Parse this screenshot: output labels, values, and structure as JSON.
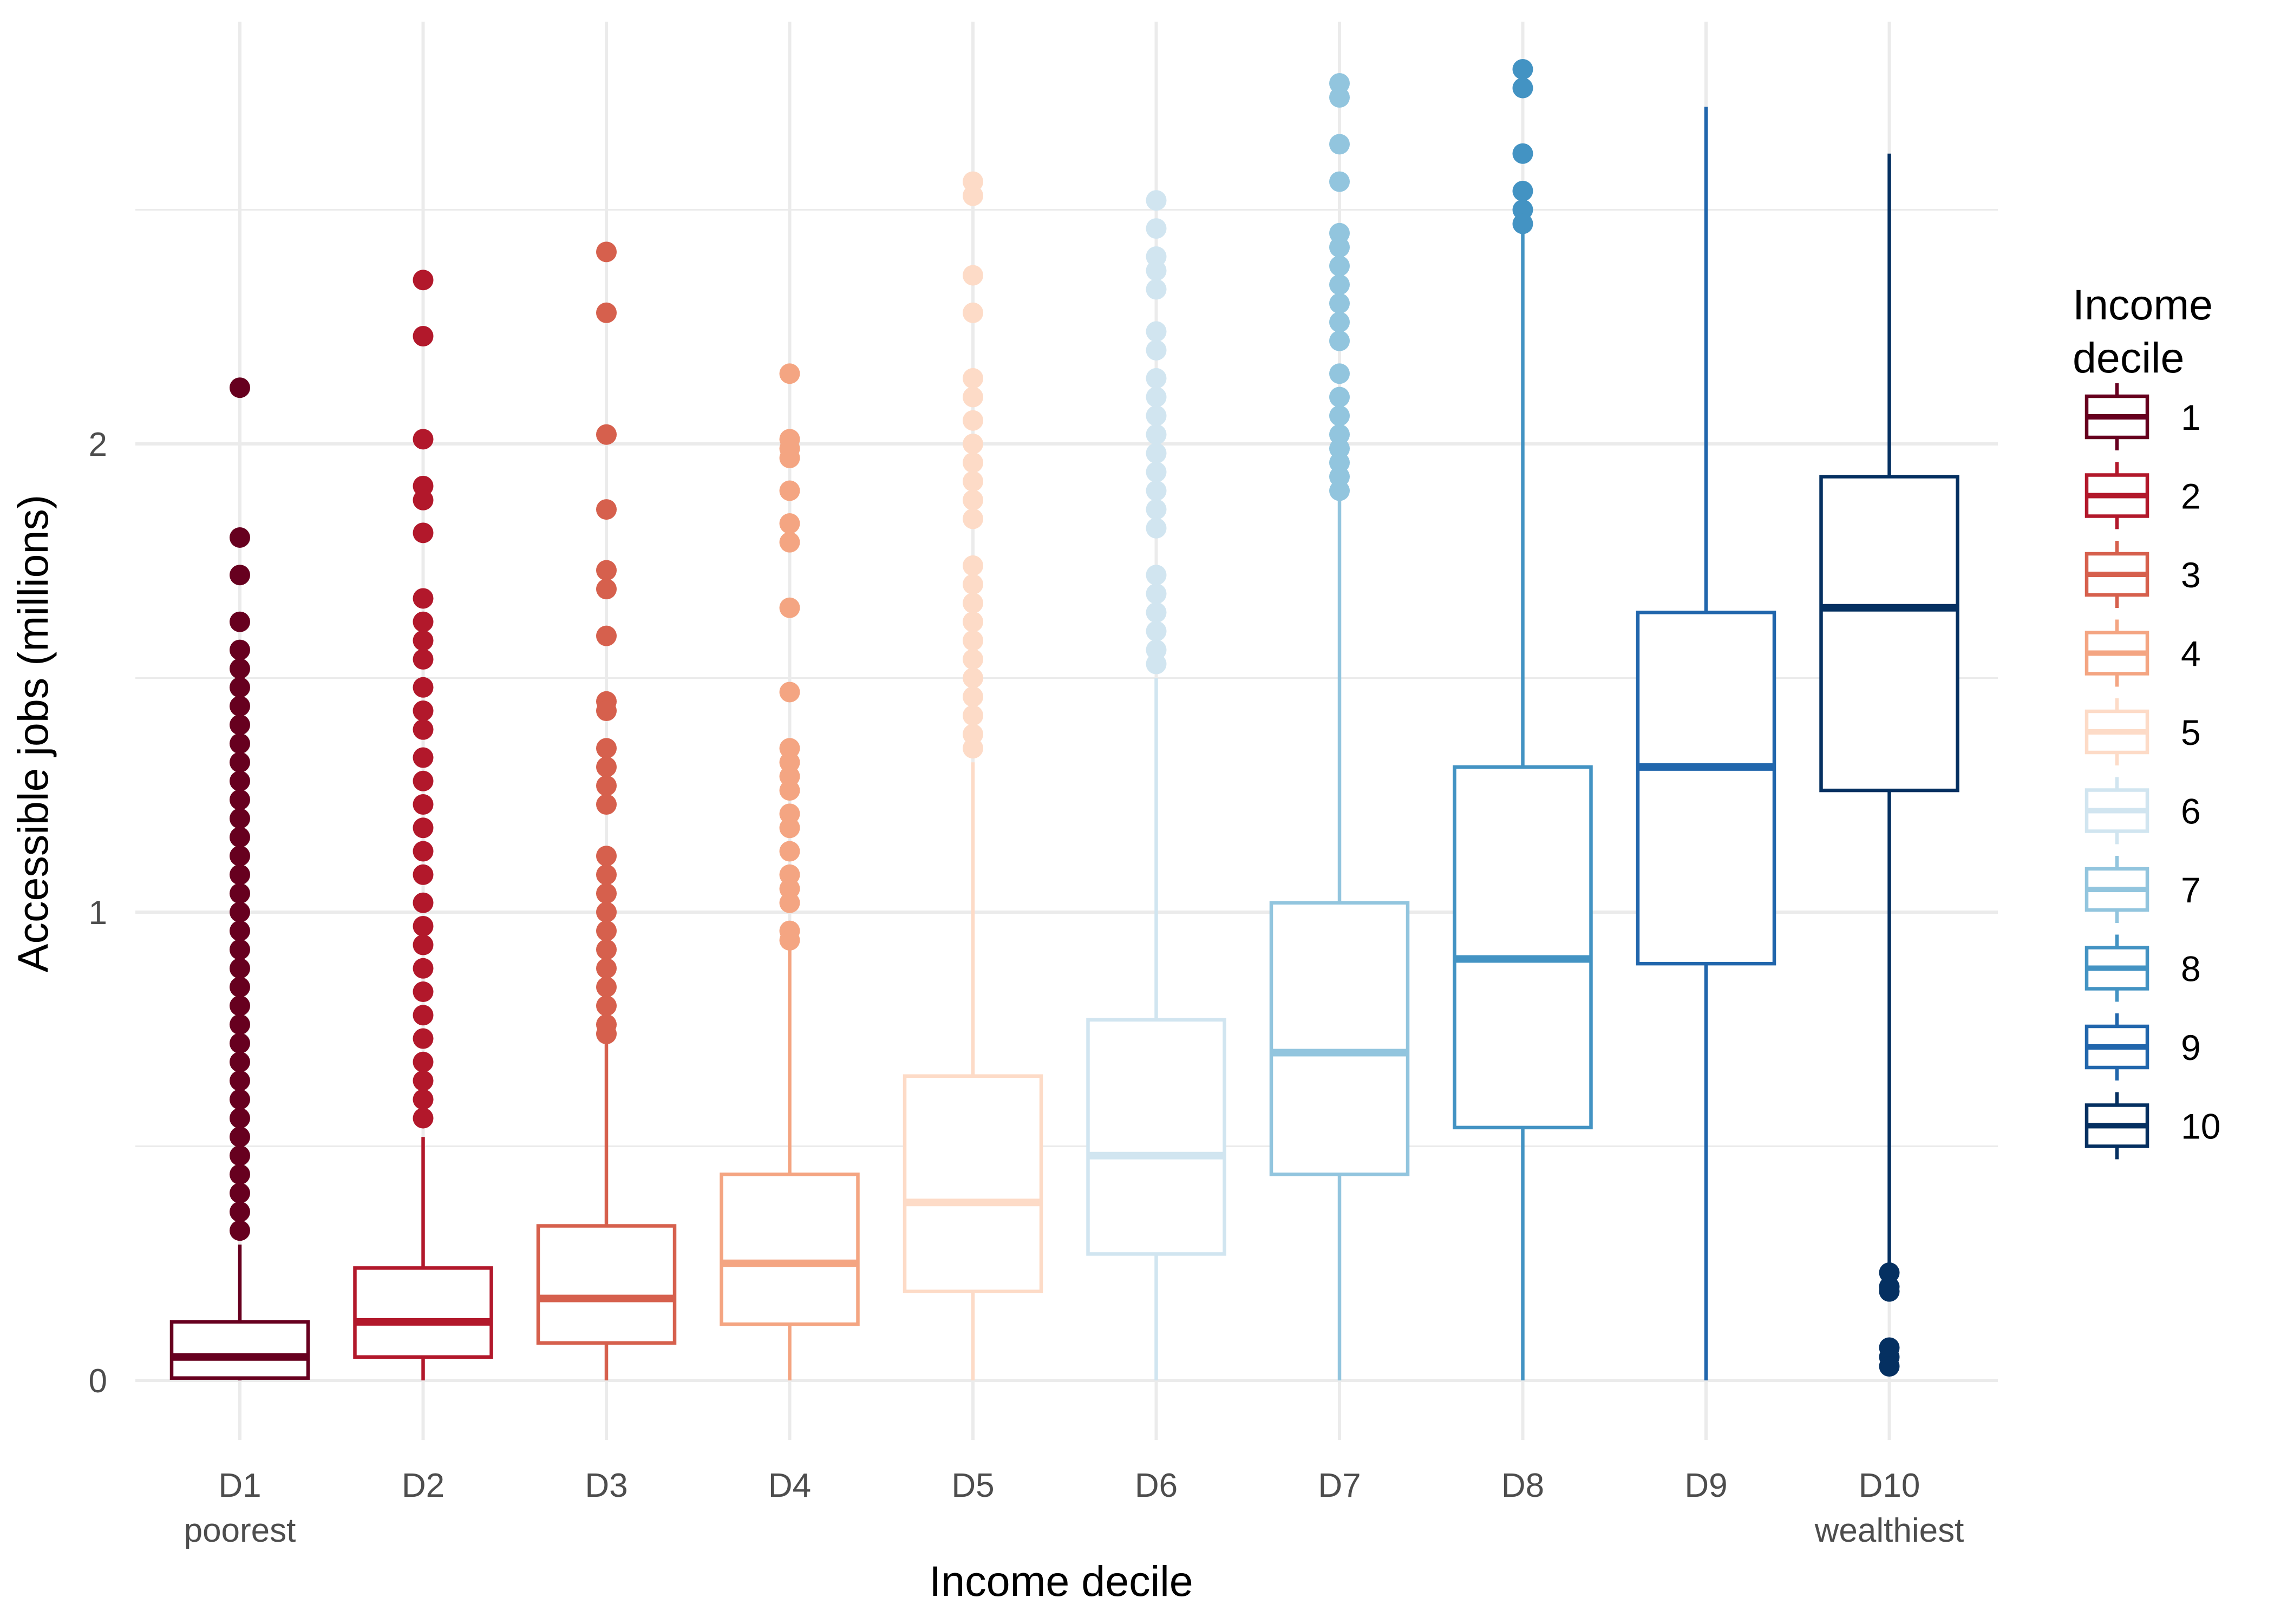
{
  "chart_data": {
    "type": "boxplot",
    "xlabel": "Income decile",
    "ylabel": "Accessible jobs (millions)",
    "ylim": [
      -0.12,
      2.88
    ],
    "yticks": [
      0,
      1,
      2
    ],
    "grid": true,
    "legend": {
      "title_lines": [
        "Income",
        "decile"
      ],
      "position": "right"
    },
    "categories": [
      {
        "label": "D1",
        "sublabel": "poorest",
        "legend_label": "1",
        "color": "#67001f",
        "q1": 0.005,
        "median": 0.05,
        "q3": 0.125,
        "whisker_low": 0.0,
        "whisker_high": 0.29,
        "outliers": [
          2.12,
          1.8,
          1.72,
          1.62,
          1.56,
          1.52,
          1.48,
          1.44,
          1.4,
          1.36,
          1.32,
          1.28,
          1.24,
          1.2,
          1.16,
          1.12,
          1.08,
          1.04,
          1.0,
          0.96,
          0.92,
          0.88,
          0.84,
          0.8,
          0.76,
          0.72,
          0.68,
          0.64,
          0.6,
          0.56,
          0.52,
          0.48,
          0.44,
          0.4,
          0.36,
          0.32
        ]
      },
      {
        "label": "D2",
        "sublabel": "",
        "legend_label": "2",
        "color": "#b2182b",
        "q1": 0.05,
        "median": 0.125,
        "q3": 0.24,
        "whisker_low": 0.0,
        "whisker_high": 0.52,
        "outliers": [
          2.35,
          2.23,
          2.01,
          1.91,
          1.88,
          1.81,
          1.67,
          1.62,
          1.58,
          1.54,
          1.48,
          1.43,
          1.39,
          1.33,
          1.28,
          1.23,
          1.18,
          1.13,
          1.08,
          1.02,
          0.97,
          0.93,
          0.88,
          0.83,
          0.78,
          0.73,
          0.68,
          0.64,
          0.6,
          0.56
        ]
      },
      {
        "label": "D3",
        "sublabel": "",
        "legend_label": "3",
        "color": "#d6604d",
        "q1": 0.08,
        "median": 0.175,
        "q3": 0.33,
        "whisker_low": 0.0,
        "whisker_high": 0.72,
        "outliers": [
          2.41,
          2.28,
          2.02,
          1.86,
          1.73,
          1.69,
          1.59,
          1.45,
          1.43,
          1.35,
          1.31,
          1.27,
          1.23,
          1.12,
          1.08,
          1.04,
          1.0,
          0.96,
          0.92,
          0.88,
          0.84,
          0.8,
          0.76,
          0.74
        ]
      },
      {
        "label": "D4",
        "sublabel": "",
        "legend_label": "4",
        "color": "#f4a582",
        "q1": 0.12,
        "median": 0.25,
        "q3": 0.44,
        "whisker_low": 0.0,
        "whisker_high": 0.92,
        "outliers": [
          2.15,
          2.01,
          1.99,
          1.97,
          1.9,
          1.83,
          1.79,
          1.65,
          1.47,
          1.35,
          1.32,
          1.29,
          1.26,
          1.21,
          1.18,
          1.13,
          1.08,
          1.05,
          1.02,
          0.96,
          0.94
        ]
      },
      {
        "label": "D5",
        "sublabel": "",
        "legend_label": "5",
        "color": "#fddbc7",
        "q1": 0.19,
        "median": 0.38,
        "q3": 0.65,
        "whisker_low": 0.0,
        "whisker_high": 1.32,
        "outliers": [
          2.56,
          2.53,
          2.36,
          2.28,
          2.14,
          2.1,
          2.05,
          2.0,
          1.96,
          1.92,
          1.88,
          1.84,
          1.74,
          1.7,
          1.66,
          1.62,
          1.58,
          1.54,
          1.5,
          1.46,
          1.42,
          1.38,
          1.35
        ]
      },
      {
        "label": "D6",
        "sublabel": "",
        "legend_label": "6",
        "color": "#d1e5f0",
        "q1": 0.27,
        "median": 0.48,
        "q3": 0.77,
        "whisker_low": 0.0,
        "whisker_high": 1.5,
        "outliers": [
          2.52,
          2.46,
          2.4,
          2.37,
          2.33,
          2.24,
          2.2,
          2.14,
          2.1,
          2.06,
          2.02,
          1.98,
          1.94,
          1.9,
          1.86,
          1.82,
          1.72,
          1.68,
          1.64,
          1.6,
          1.56,
          1.53
        ]
      },
      {
        "label": "D7",
        "sublabel": "",
        "legend_label": "7",
        "color": "#92c5de",
        "q1": 0.44,
        "median": 0.7,
        "q3": 1.02,
        "whisker_low": 0.0,
        "whisker_high": 1.88,
        "outliers": [
          2.77,
          2.74,
          2.64,
          2.56,
          2.45,
          2.42,
          2.38,
          2.34,
          2.3,
          2.26,
          2.22,
          2.15,
          2.1,
          2.06,
          2.02,
          1.99,
          1.96,
          1.93,
          1.9
        ]
      },
      {
        "label": "D8",
        "sublabel": "",
        "legend_label": "8",
        "color": "#4393c3",
        "q1": 0.54,
        "median": 0.9,
        "q3": 1.31,
        "whisker_low": 0.0,
        "whisker_high": 2.46,
        "outliers": [
          2.8,
          2.76,
          2.62,
          2.54,
          2.5,
          2.47
        ]
      },
      {
        "label": "D9",
        "sublabel": "",
        "legend_label": "9",
        "color": "#2166ac",
        "q1": 0.89,
        "median": 1.31,
        "q3": 1.64,
        "whisker_low": 0.0,
        "whisker_high": 2.72,
        "outliers": []
      },
      {
        "label": "D10",
        "sublabel": "wealthiest",
        "legend_label": "10",
        "color": "#053061",
        "q1": 1.26,
        "median": 1.65,
        "q3": 1.93,
        "whisker_low": 0.25,
        "whisker_high": 2.62,
        "outliers": [
          0.23,
          0.2,
          0.19,
          0.07,
          0.05,
          0.03
        ]
      }
    ]
  }
}
